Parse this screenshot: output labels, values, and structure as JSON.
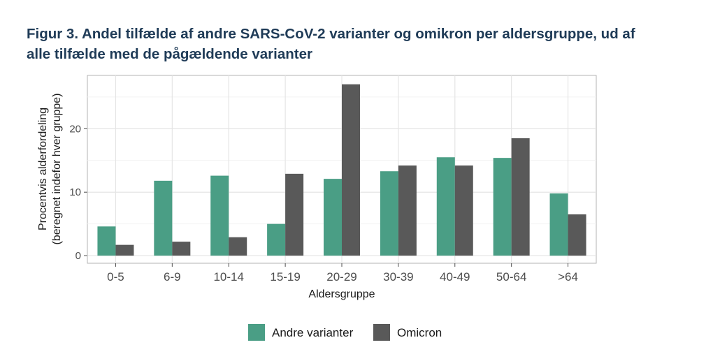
{
  "figure": {
    "title_line1": "Figur 3.  Andel tilfælde af andre SARS-CoV-2 varianter og omikron per aldersgruppe, ud af",
    "title_line2": "alle tilfælde med de pågældende varianter"
  },
  "chart_data": {
    "type": "bar",
    "categories": [
      "0-5",
      "6-9",
      "10-14",
      "15-19",
      "20-29",
      "30-39",
      "40-49",
      "50-64",
      ">64"
    ],
    "series": [
      {
        "name": "Andre varianter",
        "color": "#4a9e85",
        "values": [
          4.6,
          11.8,
          12.6,
          5.0,
          12.1,
          13.3,
          15.5,
          15.4,
          9.8
        ]
      },
      {
        "name": "Omicron",
        "color": "#595959",
        "values": [
          1.7,
          2.2,
          2.9,
          12.9,
          27.0,
          14.2,
          14.2,
          18.5,
          6.5
        ]
      }
    ],
    "xlabel": "Aldersgruppe",
    "ylabel_line1": "Procentvis alderfordeling",
    "ylabel_line2": "(beregnet indefor hver gruppe)",
    "ylim": [
      -1.2,
      28.4
    ],
    "yticks": [
      "0",
      "10",
      "20"
    ],
    "grid": true,
    "legend_position": "bottom"
  }
}
